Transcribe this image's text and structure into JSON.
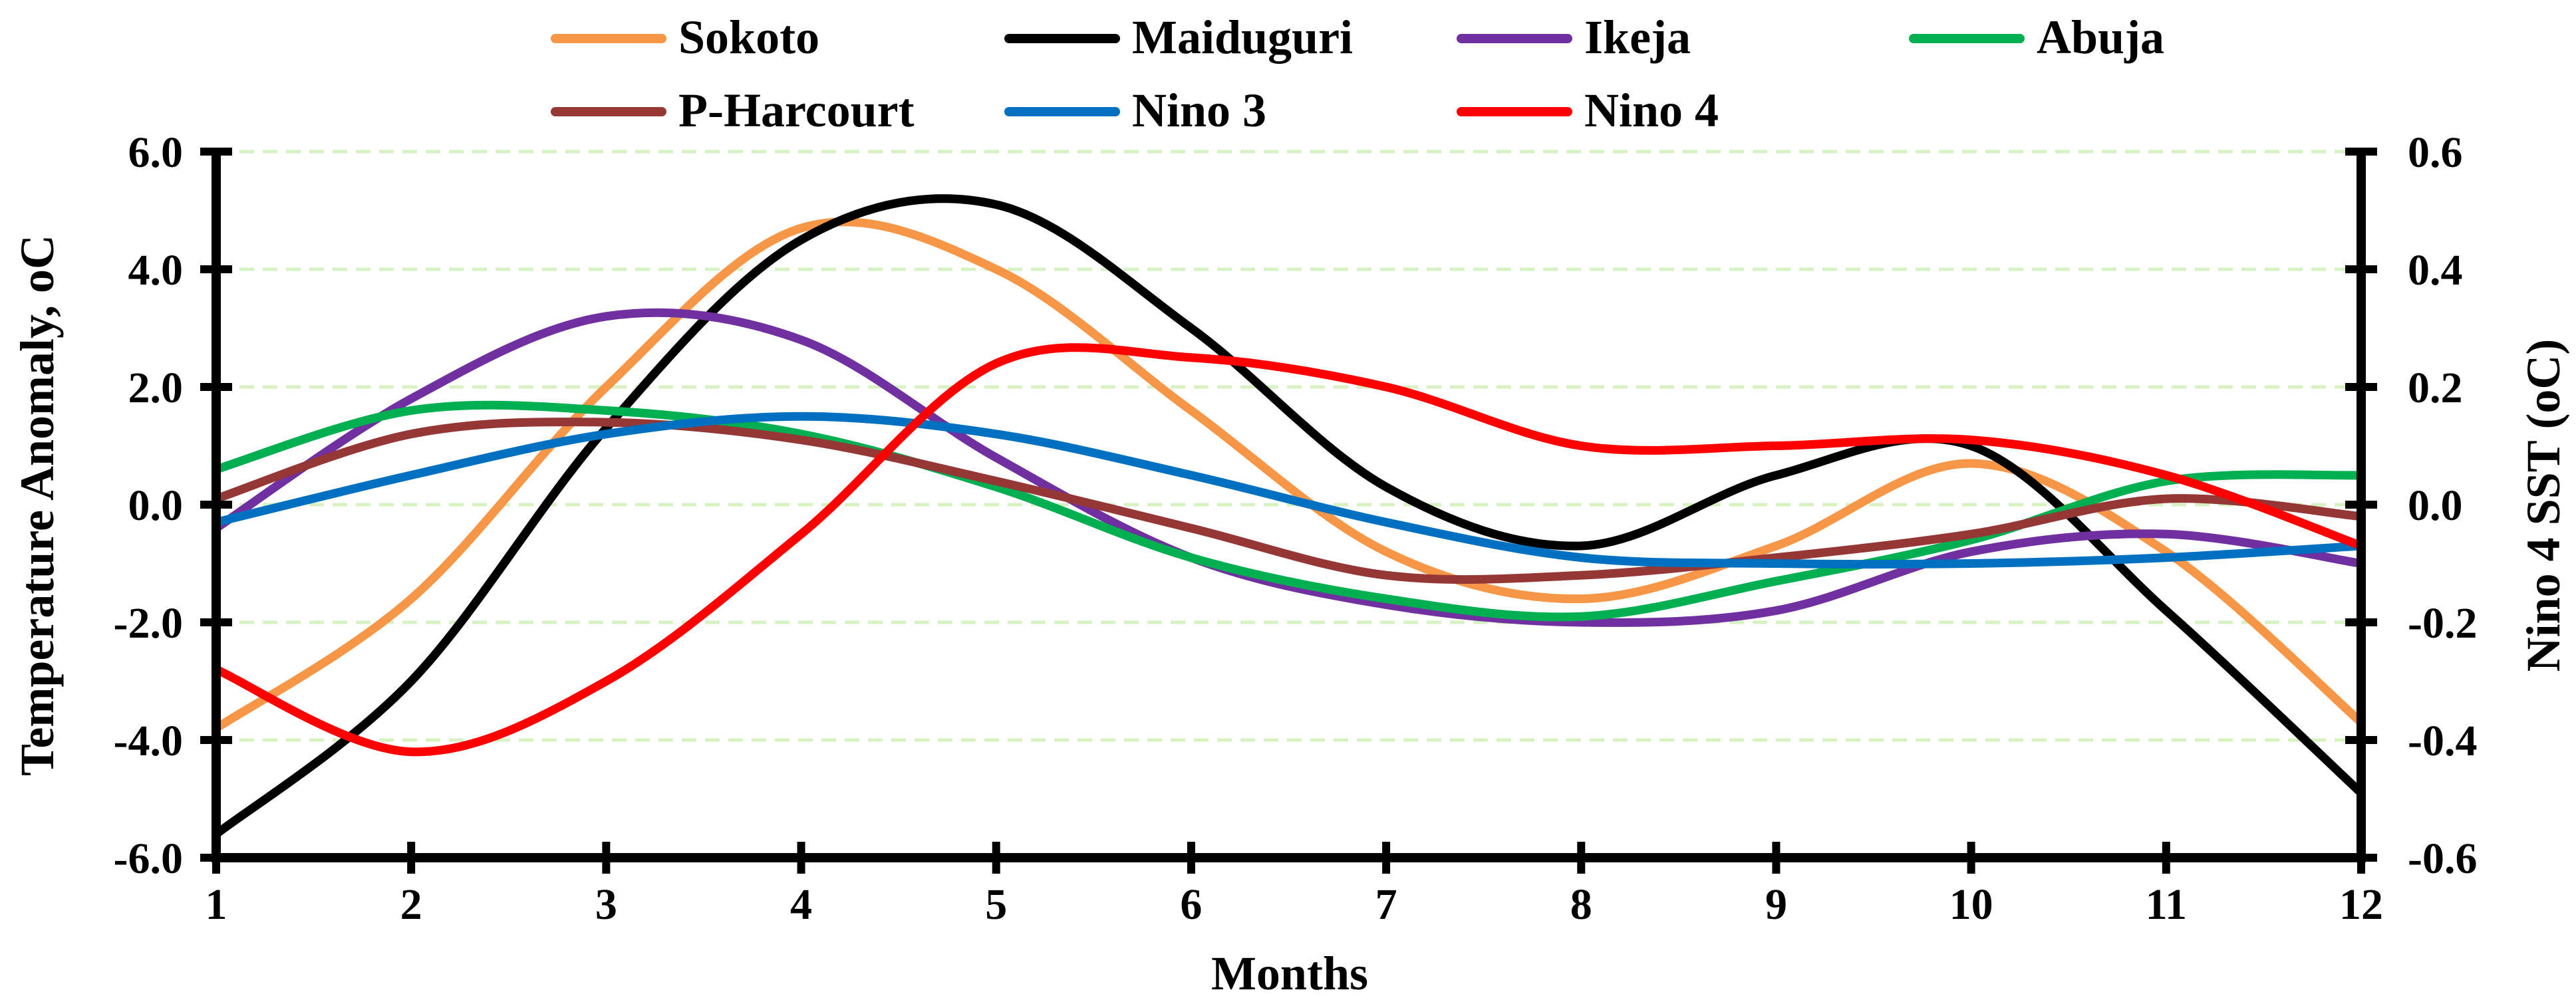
{
  "chart_data": {
    "type": "line",
    "xlabel": "Months",
    "ylabel_left": "Temperature Anomaly, oC",
    "ylabel_right": "Nino 4 SST (oC)",
    "x": [
      1,
      2,
      3,
      4,
      5,
      6,
      7,
      8,
      9,
      10,
      11,
      12
    ],
    "x_tick_labels": [
      "1",
      "2",
      "3",
      "4",
      "5",
      "6",
      "7",
      "8",
      "9",
      "10",
      "11",
      "12"
    ],
    "xlim": [
      1,
      12
    ],
    "ylim_left": [
      -6.0,
      6.0
    ],
    "ylim_right": [
      -0.6,
      0.6
    ],
    "y_left_ticks": [
      "-6.0",
      "-4.0",
      "-2.0",
      "0.0",
      "2.0",
      "4.0",
      "6.0"
    ],
    "y_right_ticks": [
      "-0.6",
      "-0.4",
      "-0.2",
      "0.0",
      "0.2",
      "0.4",
      "0.6"
    ],
    "grid": "horizontal dashed",
    "legend_position": "top",
    "series": [
      {
        "name": "Sokoto",
        "axis": "left",
        "color": "#F79646",
        "values": [
          -3.8,
          -1.6,
          2.0,
          4.7,
          4.0,
          1.6,
          -0.8,
          -1.6,
          -0.7,
          0.7,
          -0.8,
          -3.7
        ]
      },
      {
        "name": "Maiduguri",
        "axis": "left",
        "color": "#000000",
        "values": [
          -5.6,
          -3.0,
          1.3,
          4.5,
          5.1,
          3.0,
          0.3,
          -0.7,
          0.5,
          1.0,
          -1.8,
          -4.9
        ]
      },
      {
        "name": "Ikeja",
        "axis": "left",
        "color": "#7030A0",
        "values": [
          -0.4,
          1.8,
          3.2,
          2.8,
          0.8,
          -0.9,
          -1.7,
          -2.0,
          -1.8,
          -0.8,
          -0.5,
          -1.0
        ]
      },
      {
        "name": "Abuja",
        "axis": "left",
        "color": "#00B050",
        "values": [
          0.6,
          1.6,
          1.6,
          1.2,
          0.3,
          -0.9,
          -1.6,
          -1.9,
          -1.3,
          -0.6,
          0.4,
          0.5
        ]
      },
      {
        "name": "P-Harcourt",
        "axis": "left",
        "color": "#953735",
        "values": [
          0.1,
          1.2,
          1.4,
          1.1,
          0.4,
          -0.4,
          -1.2,
          -1.2,
          -0.9,
          -0.5,
          0.1,
          -0.2
        ]
      },
      {
        "name": "Nino 3",
        "axis": "right",
        "color": "#0070C0",
        "values": [
          -0.03,
          0.05,
          0.12,
          0.15,
          0.12,
          0.05,
          -0.03,
          -0.09,
          -0.1,
          -0.1,
          -0.09,
          -0.07
        ]
      },
      {
        "name": "Nino 4",
        "axis": "right",
        "color": "#FF0000",
        "values": [
          -0.28,
          -0.42,
          -0.3,
          -0.05,
          0.24,
          0.25,
          0.2,
          0.1,
          0.1,
          0.11,
          0.05,
          -0.07
        ]
      }
    ]
  }
}
